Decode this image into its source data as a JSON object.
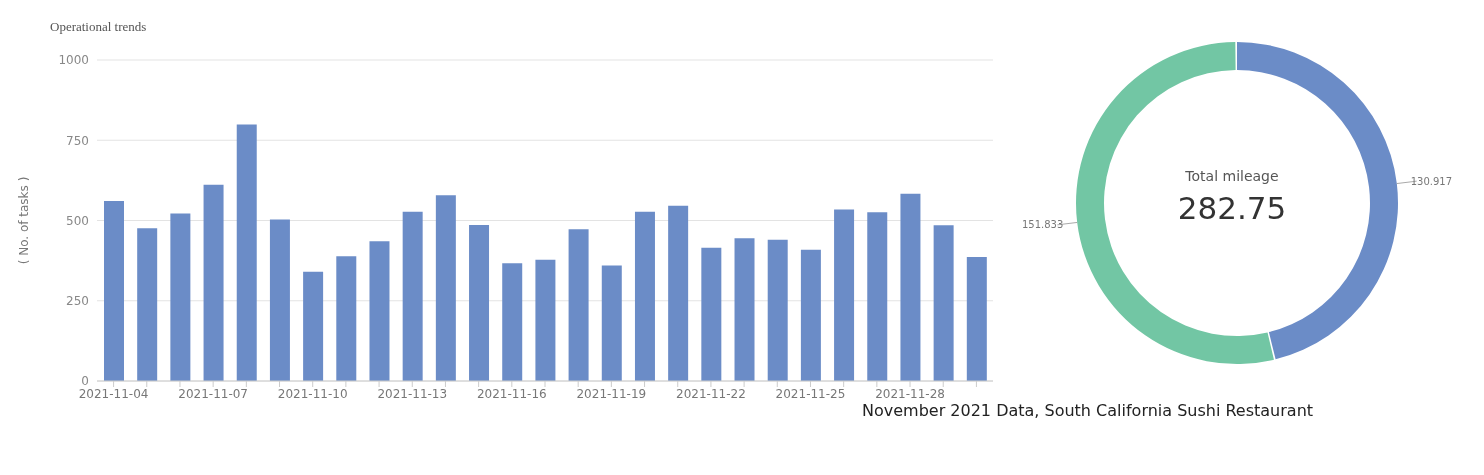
{
  "chart_data": [
    {
      "type": "bar",
      "title": "Operational trends",
      "ylabel": "( No. of tasks )",
      "categories": [
        "2021-11-04",
        null,
        null,
        "2021-11-07",
        null,
        null,
        "2021-11-10",
        null,
        null,
        "2021-11-13",
        null,
        null,
        "2021-11-16",
        null,
        null,
        "2021-11-19",
        null,
        null,
        "2021-11-22",
        null,
        null,
        "2021-11-25",
        null,
        null,
        "2021-11-28",
        null,
        null
      ],
      "values": [
        561,
        476,
        522,
        611,
        799,
        503,
        340,
        389,
        435,
        527,
        579,
        486,
        367,
        378,
        473,
        360,
        527,
        546,
        415,
        445,
        440,
        409,
        534,
        526,
        583,
        485,
        386
      ],
      "color": "#6b8cc7",
      "ylim": [
        0,
        1000
      ],
      "yticks": [
        0,
        250,
        500,
        750,
        1000
      ],
      "grid": "y",
      "legend": false
    },
    {
      "type": "donut",
      "categories": [
        null,
        null
      ],
      "values": [
        130.917,
        151.833
      ],
      "colors": [
        "#6b8cc7",
        "#72c6a4"
      ],
      "data_labels": true,
      "legend": false,
      "annotations": [
        "Total mileage",
        "282.75",
        "November 2021 Data, South California Sushi Restaurant"
      ]
    }
  ]
}
